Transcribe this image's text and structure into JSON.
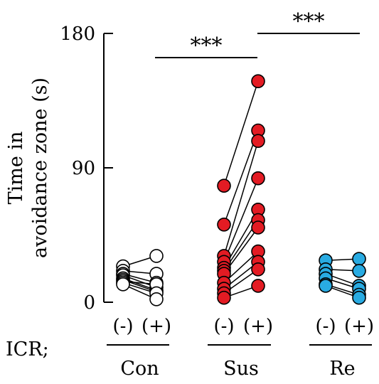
{
  "chart_data": {
    "type": "scatter",
    "title": "",
    "ylabel_lines": [
      "Time in",
      "avoidance zone (s)"
    ],
    "ylim": [
      0,
      180
    ],
    "yticks": [
      0,
      90,
      180
    ],
    "row_label": "ICR;",
    "conditions": [
      "(-)",
      "(+)"
    ],
    "groups": [
      {
        "name": "Con",
        "color": "#ffffff",
        "stroke": "#000000",
        "pairs": [
          [
            24,
            31
          ],
          [
            21,
            19
          ],
          [
            19,
            13
          ],
          [
            18,
            10
          ],
          [
            16,
            8
          ],
          [
            15,
            7
          ],
          [
            14,
            12
          ],
          [
            13,
            6
          ],
          [
            12,
            2
          ]
        ]
      },
      {
        "name": "Sus",
        "color": "#e31b23",
        "stroke": "#000000",
        "pairs": [
          [
            78,
            148
          ],
          [
            52,
            115
          ],
          [
            31,
            108
          ],
          [
            27,
            83
          ],
          [
            23,
            62
          ],
          [
            21,
            55
          ],
          [
            19,
            50
          ],
          [
            13,
            34
          ],
          [
            9,
            27
          ],
          [
            6,
            22
          ],
          [
            3,
            11
          ]
        ]
      },
      {
        "name": "Re",
        "color": "#29abe2",
        "stroke": "#000000",
        "pairs": [
          [
            28,
            29
          ],
          [
            22,
            21
          ],
          [
            19,
            11
          ],
          [
            16,
            9
          ],
          [
            12,
            5
          ],
          [
            11,
            3
          ]
        ]
      }
    ],
    "significance": [
      {
        "from": "Con",
        "to": "Sus",
        "label": "***"
      },
      {
        "from": "Sus",
        "to": "Re",
        "label": "***"
      }
    ]
  }
}
